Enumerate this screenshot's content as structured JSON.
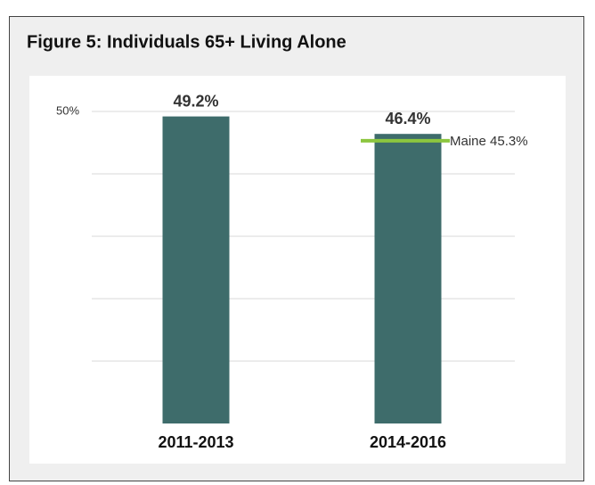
{
  "chart_data": {
    "type": "bar",
    "title": "Figure 5: Individuals 65+ Living Alone",
    "categories": [
      "2011-2013",
      "2014-2016"
    ],
    "values": [
      49.2,
      46.4
    ],
    "value_labels": [
      "49.2%",
      "46.4%"
    ],
    "color": "#3e6c6b",
    "ylim": [
      0,
      50
    ],
    "yticks": [
      {
        "value": 50,
        "label": "50%"
      }
    ],
    "gridlines": [
      10,
      20,
      30,
      40,
      50
    ],
    "grid": true,
    "reference": {
      "value": 45.3,
      "label": "Maine 45.3%",
      "color": "#8cc63f"
    }
  }
}
